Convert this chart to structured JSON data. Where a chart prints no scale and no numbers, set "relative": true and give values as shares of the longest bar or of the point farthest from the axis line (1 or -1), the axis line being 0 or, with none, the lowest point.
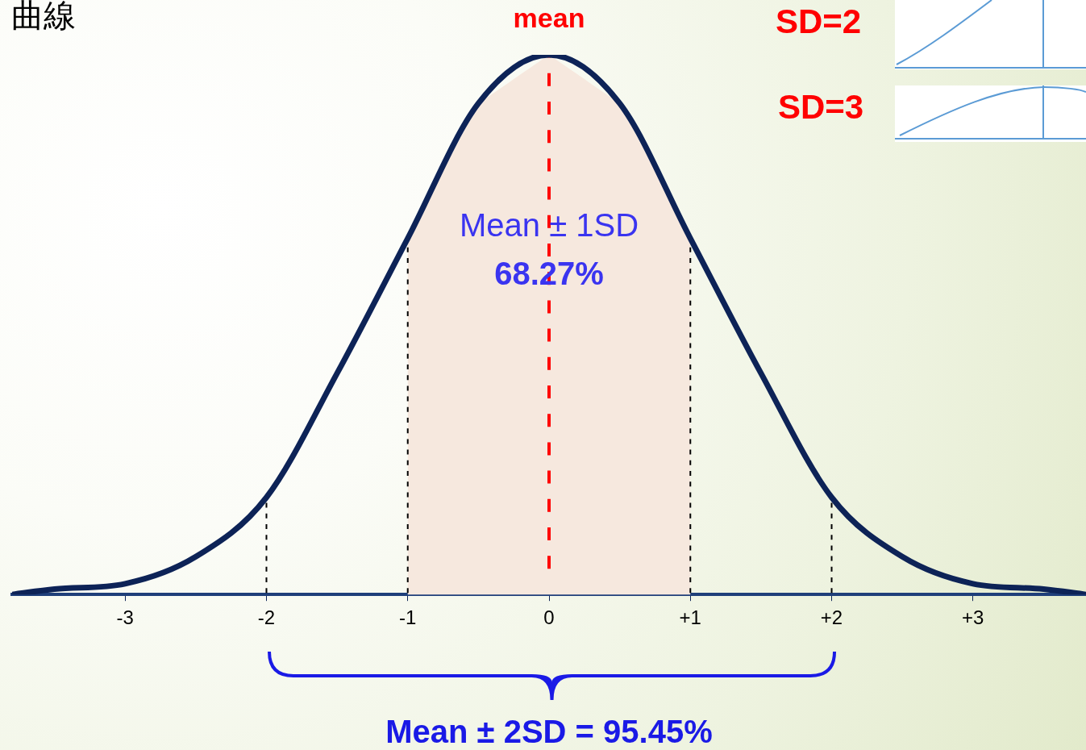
{
  "chart_data": {
    "type": "line",
    "title": "曲線",
    "relative": true,
    "x": [
      -3.8,
      -3.5,
      -3,
      -2.5,
      -2,
      -1.5,
      -1,
      -0.5,
      0,
      0.5,
      1,
      1.5,
      2,
      2.5,
      3,
      3.5,
      3.8
    ],
    "series": [
      {
        "color": "#0d2357",
        "values": [
          0,
          0.01,
          0.02,
          0.07,
          0.18,
          0.41,
          0.66,
          0.91,
          1,
          0.91,
          0.66,
          0.41,
          0.18,
          0.07,
          0.02,
          0.01,
          0
        ]
      }
    ],
    "xlim": [
      -3.8,
      3.8
    ],
    "xticks": [
      -3,
      -2,
      -1,
      0,
      {
        "value": 1,
        "label": "+1"
      },
      {
        "value": 2,
        "label": "+2"
      },
      {
        "value": 3,
        "label": "+3"
      }
    ],
    "tick_labels": "x",
    "grid": false,
    "legend": false,
    "marker": "none",
    "line_style": "solid",
    "bands": [
      {
        "axis": "x",
        "from": -1,
        "to": 1,
        "color": "#f6e8de"
      }
    ],
    "ref_lines": [
      {
        "axis": "x",
        "value": 0,
        "label": "mean",
        "color": "#ff0000",
        "line_style": "dashed"
      },
      {
        "axis": "x",
        "value": -2,
        "color": "#000000",
        "line_style": "dashed"
      },
      {
        "axis": "x",
        "value": -1,
        "color": "#000000",
        "line_style": "dashed"
      },
      {
        "axis": "x",
        "value": 1,
        "color": "#000000",
        "line_style": "dashed"
      },
      {
        "axis": "x",
        "value": 2,
        "color": "#000000",
        "line_style": "dashed"
      }
    ],
    "annotations": [
      {
        "text": "Mean ± 1SD",
        "x": 0,
        "y": 0.68
      },
      {
        "text": "68.27%",
        "x": 0,
        "y": 0.59
      },
      "Mean ± 2SD = 95.45%",
      "SD=2",
      "SD=3"
    ]
  }
}
